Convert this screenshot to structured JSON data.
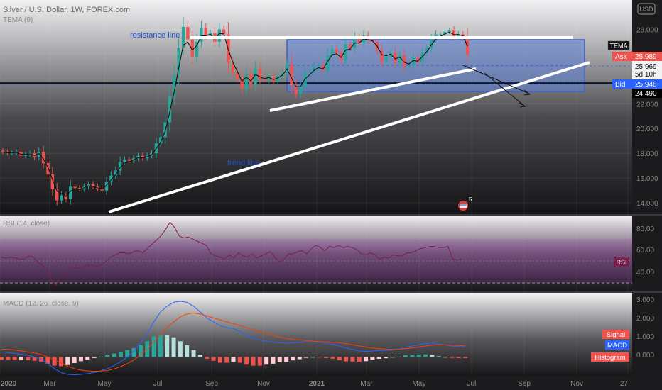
{
  "header": {
    "title": "Silver / U.S. Dollar, 1W, FOREX.com",
    "indicator": "TEMA (9)",
    "currency": "USD"
  },
  "annotations": {
    "resistance": "resistance line",
    "trend": "trend line"
  },
  "price_labels": {
    "tema_tag": "TEMA",
    "ask_label": "Ask",
    "ask_value": "25.989",
    "last_value": "25.969",
    "countdown": "5d 10h",
    "bid_label": "Bid",
    "bid_value": "25.948",
    "line_value": "24.490"
  },
  "marker_badge": "5",
  "rsi": {
    "title": "RSI (14, close)",
    "tag": "RSI",
    "ticks": [
      "80.00",
      "60.00",
      "40.00"
    ]
  },
  "macd": {
    "title": "MACD (12, 26, close, 9)",
    "ticks": [
      "3.000",
      "2.000",
      "1.000",
      "0.000"
    ],
    "legend": [
      "Signal",
      "MACD",
      "Histogram"
    ]
  },
  "time_axis": [
    "2020",
    "Mar",
    "May",
    "Jul",
    "Sep",
    "Nov",
    "2021",
    "Mar",
    "May",
    "Jul",
    "Sep",
    "Nov",
    "27"
  ],
  "colors": {
    "up": "#26a69a",
    "down": "#ef5350",
    "box": "#5b7fd6",
    "rsi": "#7b1f4f",
    "macd": "#2962ff",
    "signal": "#ff3d00"
  },
  "chart_data": [
    {
      "type": "candlestick",
      "title": "Silver / U.S. Dollar, 1W, FOREX.com",
      "yticks": [
        "28.000",
        "26.000",
        "24.000",
        "22.000",
        "20.000",
        "18.000",
        "16.000",
        "14.000"
      ],
      "ylim": [
        13.2,
        29.8
      ],
      "weekly_close_approx": [
        18.1,
        18.0,
        18.0,
        18.1,
        17.8,
        17.9,
        18.0,
        17.7,
        18.1,
        17.2,
        16.3,
        15.1,
        14.2,
        14.6,
        14.3,
        15.3,
        15.2,
        15.1,
        15.3,
        15.5,
        15.3,
        15.1,
        15.0,
        15.7,
        16.2,
        16.6,
        17.3,
        17.5,
        17.4,
        17.6,
        17.8,
        17.6,
        17.8,
        18.0,
        18.8,
        19.3,
        20.5,
        22.6,
        24.3,
        26.5,
        28.2,
        27.2,
        25.8,
        27.0,
        28.1,
        27.5,
        27.7,
        27.0,
        28.0,
        27.6,
        25.3,
        24.5,
        24.0,
        23.2,
        24.4,
        23.6,
        24.8,
        24.0,
        23.9,
        24.2,
        23.8,
        24.2,
        24.5,
        25.2,
        23.5,
        22.8,
        23.4,
        24.5,
        24.6,
        25.0,
        25.1,
        24.7,
        25.9,
        26.4,
        26.1,
        25.5,
        26.8,
        26.5,
        27.3,
        26.9,
        27.5,
        27.1,
        27.0,
        26.3,
        25.4,
        25.8,
        26.1,
        25.3,
        25.9,
        25.0,
        25.1,
        25.7,
        25.4,
        26.1,
        26.5,
        27.2,
        27.6,
        27.6,
        27.8,
        27.9,
        27.4,
        27.6,
        27.4,
        25.97
      ]
    },
    {
      "type": "line",
      "title": "RSI (14, close)",
      "ylim": [
        20,
        90
      ],
      "levels": [
        70,
        30
      ],
      "series": [
        {
          "name": "RSI",
          "values": [
            52,
            51,
            52,
            51,
            50,
            50,
            53,
            52,
            47,
            44,
            40,
            30,
            25,
            35,
            34,
            42,
            42,
            41,
            43,
            44,
            44,
            43,
            45,
            48,
            52,
            54,
            56,
            56,
            55,
            57,
            58,
            56,
            60,
            64,
            68,
            72,
            78,
            85,
            80,
            72,
            70,
            71,
            69,
            67,
            65,
            63,
            55,
            53,
            52,
            50,
            54,
            51,
            56,
            53,
            52,
            55,
            51,
            53,
            55,
            57,
            52,
            47,
            50,
            55,
            55,
            57,
            58,
            55,
            60,
            63,
            61,
            58,
            62,
            61,
            63,
            61,
            62,
            61,
            59,
            55,
            54,
            56,
            54,
            50,
            52,
            51,
            54,
            53,
            53,
            56,
            56,
            58,
            60,
            61,
            62,
            62,
            61,
            61,
            62,
            50,
            49,
            50
          ]
        }
      ]
    },
    {
      "type": "bar",
      "title": "MACD (12, 26, close, 9)",
      "ylim": [
        -0.9,
        3.1
      ],
      "series": [
        {
          "name": "MACD",
          "values": [
            0.25,
            0.22,
            0.18,
            0.14,
            0.08,
            0.0,
            -0.12,
            -0.35,
            -0.6,
            -0.8,
            -0.9,
            -0.92,
            -0.9,
            -0.86,
            -0.8,
            -0.72,
            -0.6,
            -0.45,
            -0.25,
            0.0,
            0.3,
            0.7,
            1.2,
            1.8,
            2.3,
            2.6,
            2.8,
            2.85,
            2.8,
            2.6,
            2.3,
            2.0,
            1.8,
            1.6,
            1.5,
            1.45,
            1.3,
            1.1,
            0.95,
            0.85,
            0.8,
            0.75,
            0.73,
            0.7,
            0.72,
            0.74,
            0.78,
            0.8,
            0.75,
            0.7,
            0.65,
            0.55,
            0.45,
            0.38,
            0.3,
            0.28,
            0.3,
            0.32,
            0.33,
            0.35,
            0.4,
            0.5,
            0.55,
            0.62,
            0.68,
            0.7,
            0.65,
            0.6,
            0.55,
            0.52,
            0.5
          ]
        },
        {
          "name": "Signal",
          "values": [
            0.4,
            0.38,
            0.35,
            0.3,
            0.25,
            0.2,
            0.12,
            0.0,
            -0.15,
            -0.32,
            -0.48,
            -0.6,
            -0.68,
            -0.72,
            -0.74,
            -0.73,
            -0.7,
            -0.62,
            -0.5,
            -0.35,
            -0.15,
            0.1,
            0.4,
            0.75,
            1.15,
            1.5,
            1.8,
            2.05,
            2.2,
            2.25,
            2.2,
            2.1,
            2.0,
            1.9,
            1.8,
            1.7,
            1.6,
            1.5,
            1.4,
            1.3,
            1.2,
            1.1,
            1.0,
            0.95,
            0.9,
            0.86,
            0.83,
            0.8,
            0.78,
            0.76,
            0.74,
            0.72,
            0.68,
            0.62,
            0.56,
            0.5,
            0.45,
            0.42,
            0.4,
            0.38,
            0.39,
            0.42,
            0.46,
            0.5,
            0.55,
            0.6,
            0.62,
            0.62,
            0.6,
            0.58,
            0.56
          ]
        },
        {
          "name": "Histogram",
          "values": [
            -0.15,
            -0.16,
            -0.17,
            -0.16,
            -0.17,
            -0.2,
            -0.24,
            -0.35,
            -0.45,
            -0.48,
            -0.42,
            -0.32,
            -0.22,
            -0.14,
            -0.06,
            0.01,
            0.1,
            0.17,
            0.25,
            0.35,
            0.45,
            0.6,
            0.8,
            1.05,
            1.15,
            1.1,
            1.0,
            0.8,
            0.6,
            0.35,
            0.1,
            -0.1,
            -0.2,
            -0.3,
            -0.3,
            -0.25,
            -0.3,
            -0.4,
            -0.45,
            -0.45,
            -0.4,
            -0.35,
            -0.27,
            -0.25,
            -0.18,
            -0.12,
            -0.05,
            0.0,
            -0.03,
            -0.06,
            -0.09,
            -0.17,
            -0.23,
            -0.24,
            -0.26,
            -0.22,
            -0.15,
            -0.1,
            -0.07,
            -0.03,
            0.01,
            0.08,
            0.09,
            0.12,
            0.13,
            0.1,
            0.03,
            -0.02,
            -0.05,
            -0.06,
            -0.06
          ]
        }
      ]
    }
  ]
}
